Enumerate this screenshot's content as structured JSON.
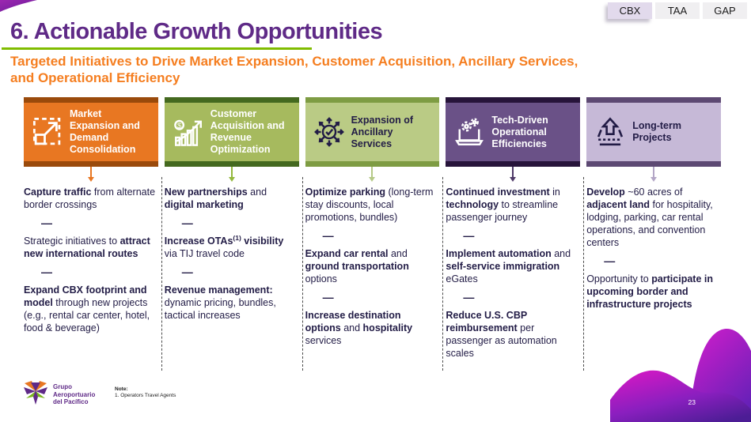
{
  "tabs": [
    {
      "label": "CBX",
      "active": true
    },
    {
      "label": "TAA",
      "active": false
    },
    {
      "label": "GAP",
      "active": false
    }
  ],
  "header": {
    "title": "6. Actionable Growth Opportunities",
    "subtitle_line1": "Targeted Initiatives to Drive Market Expansion, Customer Acquisition, Ancillary Services,",
    "subtitle_line2": "and Operational Efficiency",
    "title_color": "#5F2A87",
    "subtitle_color": "#F57E20",
    "rule_color": "#80BC00"
  },
  "separator": "—",
  "columns": [
    {
      "id": "market-expansion",
      "title": "Market Expansion and Demand Consolidation",
      "icon": "expand-demand-icon",
      "colors": {
        "body": "#E87722",
        "bar": "#9A4A0B",
        "text": "#FFFFFF",
        "arrow": "#E87722"
      },
      "items": [
        [
          {
            "t": "Capture traffic",
            "b": true
          },
          {
            "t": " from alternate border crossings",
            "b": false
          }
        ],
        [
          {
            "t": "Strategic initiatives to ",
            "b": false
          },
          {
            "t": "attract new international routes",
            "b": true
          }
        ],
        [
          {
            "t": "Expand CBX footprint and model",
            "b": true
          },
          {
            "t": " through new projects (e.g., rental car center, hotel, food & beverage)",
            "b": false
          }
        ]
      ]
    },
    {
      "id": "customer-acquisition",
      "title": "Customer Acquisition and Revenue Optimization",
      "icon": "revenue-growth-icon",
      "colors": {
        "body": "#A6BA5E",
        "bar": "#44691F",
        "text": "#FFFFFF",
        "arrow": "#93B83C"
      },
      "items": [
        [
          {
            "t": "New partnerships",
            "b": true
          },
          {
            "t": " and ",
            "b": false
          },
          {
            "t": "digital marketing",
            "b": true
          }
        ],
        [
          {
            "t": "Increase OTAs",
            "b": true
          },
          {
            "t": "(1)",
            "b": true,
            "sup": true
          },
          {
            "t": " visibility",
            "b": true
          },
          {
            "t": " via TIJ travel code",
            "b": false
          }
        ],
        [
          {
            "t": "Revenue management:",
            "b": true
          },
          {
            "t": " dynamic pricing, bundles, tactical increases",
            "b": false
          }
        ]
      ]
    },
    {
      "id": "ancillary-services",
      "title": "Expansion of Ancillary Services",
      "icon": "ancillary-expansion-icon",
      "colors": {
        "body": "#BACB85",
        "bar": "#7E9C43",
        "text": "#221C46",
        "arrow": "#B5C987"
      },
      "items": [
        [
          {
            "t": "Optimize parking",
            "b": true
          },
          {
            "t": " (long-term stay discounts, local promotions, bundles)",
            "b": false
          }
        ],
        [
          {
            "t": "Expand car rental",
            "b": true
          },
          {
            "t": " and ",
            "b": false
          },
          {
            "t": "ground transportation",
            "b": true
          },
          {
            "t": " options",
            "b": false
          }
        ],
        [
          {
            "t": "Increase destination options",
            "b": true
          },
          {
            "t": " and ",
            "b": false
          },
          {
            "t": "hospitality",
            "b": true
          },
          {
            "t": " services",
            "b": false
          }
        ]
      ]
    },
    {
      "id": "tech-efficiencies",
      "title": "Tech-Driven Operational Efficiencies",
      "icon": "laptop-gears-icon",
      "colors": {
        "body": "#6A5187",
        "bar": "#27143A",
        "text": "#FFFFFF",
        "arrow": "#4F3A68"
      },
      "items": [
        [
          {
            "t": "Continued investment",
            "b": true
          },
          {
            "t": " in ",
            "b": false
          },
          {
            "t": "technology",
            "b": true
          },
          {
            "t": " to streamline passenger journey",
            "b": false
          }
        ],
        [
          {
            "t": "Implement automation",
            "b": true
          },
          {
            "t": " and ",
            "b": false
          },
          {
            "t": "self-service immigration",
            "b": true
          },
          {
            "t": " eGates",
            "b": false
          }
        ],
        [
          {
            "t": "Reduce U.S. CBP reimbursement",
            "b": true
          },
          {
            "t": " per passenger as automation scales",
            "b": false
          }
        ]
      ]
    },
    {
      "id": "long-term-projects",
      "title": "Long-term Projects",
      "icon": "long-term-projects-icon",
      "colors": {
        "body": "#C6B9D7",
        "bar": "#5D4973",
        "text": "#221C46",
        "arrow": "#B3A6C6"
      },
      "items": [
        [
          {
            "t": "Develop",
            "b": true
          },
          {
            "t": " ~60 acres of ",
            "b": false
          },
          {
            "t": "adjacent land",
            "b": true
          },
          {
            "t": " for hospitality, lodging, parking, car rental operations, and convention centers",
            "b": false
          }
        ],
        [
          {
            "t": "Opportunity to ",
            "b": false
          },
          {
            "t": "participate in upcoming border and infrastructure projects",
            "b": true
          }
        ]
      ]
    }
  ],
  "footer": {
    "logo_line1": "Grupo",
    "logo_line2": "Aeroportuario",
    "logo_line3": "del Pacífico",
    "note_label": "Note:",
    "note_text": "1. Operators Travel Agents",
    "page_number": "23"
  },
  "accent_colors": {
    "wave_magenta": "#D418C4",
    "wave_purple": "#5B21B6",
    "body_text": "#221C46"
  }
}
